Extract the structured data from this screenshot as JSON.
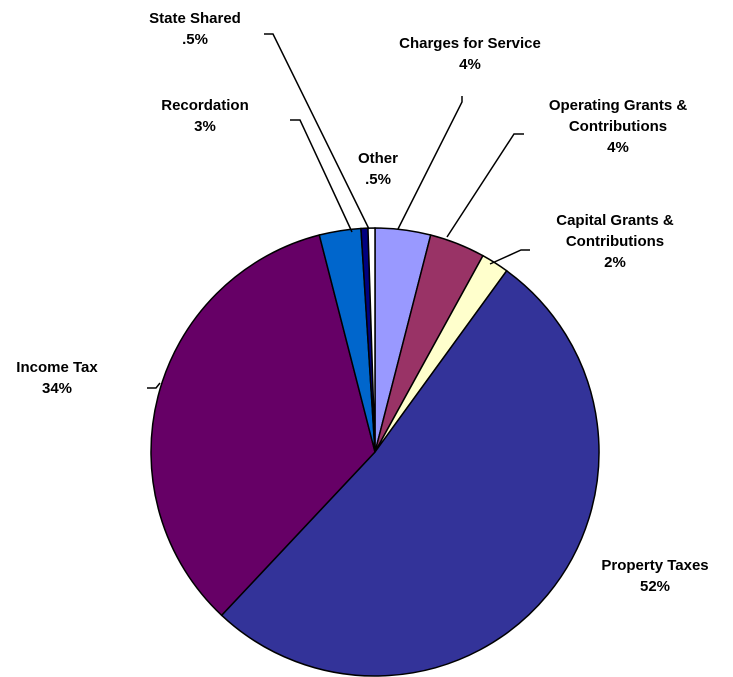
{
  "chart_data": {
    "type": "pie",
    "categories": [
      "Charges for Service",
      "Operating Grants & Contributions",
      "Capital Grants & Contributions",
      "Property Taxes",
      "Income Tax",
      "Recordation",
      "State Shared",
      "Other"
    ],
    "values": [
      4,
      4,
      2,
      52,
      34,
      3,
      0.5,
      0.5
    ],
    "value_labels": [
      "4%",
      "4%",
      "2%",
      "52%",
      "34%",
      "3%",
      ".5%",
      ".5%"
    ],
    "colors": [
      "#9999ff",
      "#993366",
      "#ffffcc",
      "#333399",
      "#660066",
      "#0066cc",
      "#000080",
      "#ffffff"
    ]
  }
}
